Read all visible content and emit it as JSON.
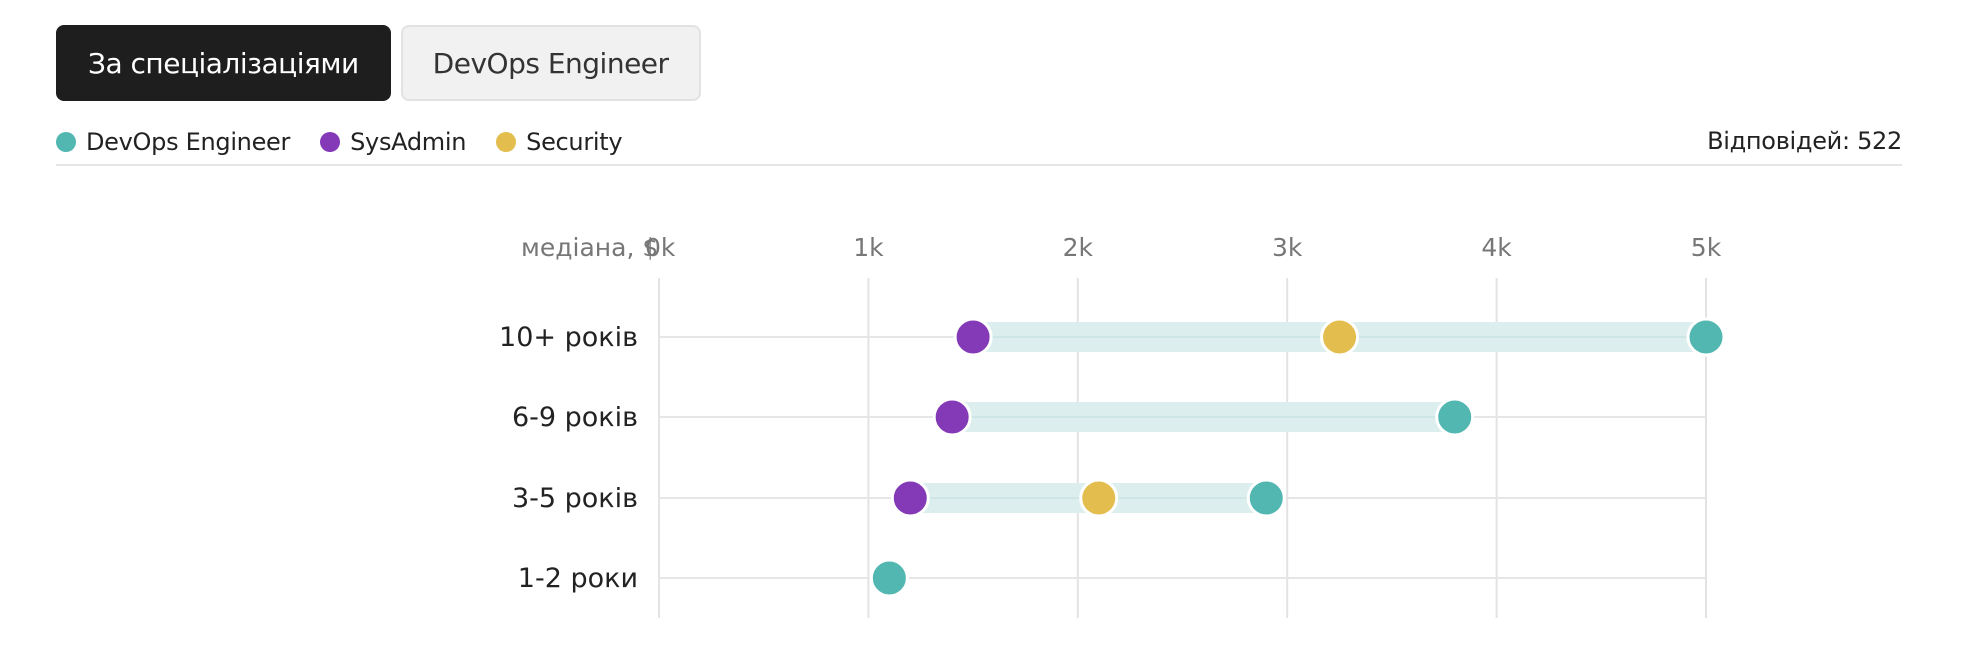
{
  "tabs": [
    {
      "label": "За спеціалізаціями",
      "active": true
    },
    {
      "label": "DevOps Engineer",
      "active": false
    }
  ],
  "legend": [
    {
      "name": "DevOps Engineer",
      "color": "#52b7b1"
    },
    {
      "name": "SysAdmin",
      "color": "#8439b6"
    },
    {
      "name": "Security",
      "color": "#e3be4e"
    }
  ],
  "responses": "Відповідей: 522",
  "chart_data": {
    "type": "scatter",
    "x_axis_title": "медіана, $",
    "x_ticks": [
      "0k",
      "1k",
      "2k",
      "3k",
      "4k",
      "5k"
    ],
    "x_tick_values": [
      0,
      1000,
      2000,
      3000,
      4000,
      5000
    ],
    "xlim": [
      0,
      5000
    ],
    "categories": [
      "10+ років",
      "6-9 років",
      "3-5 років",
      "1-2 роки"
    ],
    "grid": true,
    "range_band_color": "#dcefee",
    "series": [
      {
        "name": "DevOps Engineer",
        "color": "#52b7b1",
        "values": [
          5000,
          3800,
          2900,
          1100
        ]
      },
      {
        "name": "SysAdmin",
        "color": "#8439b6",
        "values": [
          1500,
          1400,
          1200,
          null
        ]
      },
      {
        "name": "Security",
        "color": "#e3be4e",
        "values": [
          3250,
          null,
          2100,
          null
        ]
      }
    ]
  }
}
